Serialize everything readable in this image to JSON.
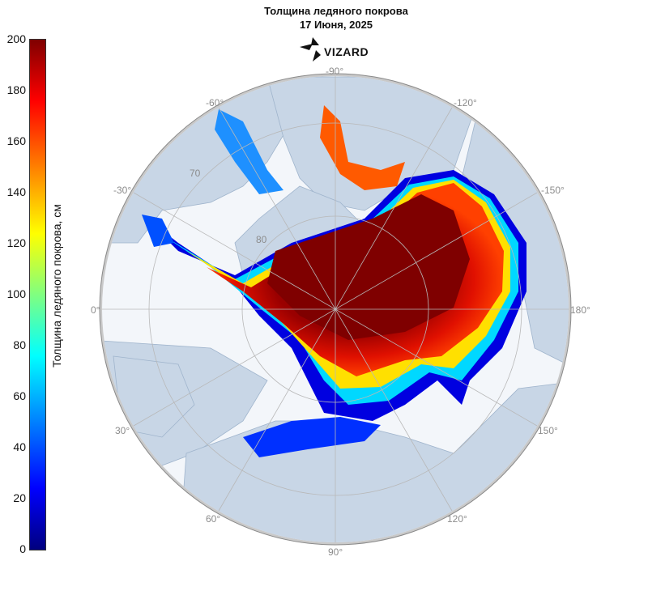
{
  "header": {
    "title_line1": "Толщина ледяного покрова",
    "title_line2": "17 Июня, 2025",
    "logo_text": "VIZARD"
  },
  "colorbar": {
    "label": "Толщина ледяного покрова, см",
    "ticks": [
      "200",
      "180",
      "160",
      "140",
      "120",
      "100",
      "80",
      "60",
      "40",
      "20",
      "0"
    ],
    "range": [
      0,
      200
    ],
    "colors": [
      "#00007f",
      "#0000ff",
      "#0080ff",
      "#00ffff",
      "#80ff80",
      "#ffff00",
      "#ff8000",
      "#ff0000",
      "#7f0000"
    ]
  },
  "map": {
    "longitude_labels": [
      "-90°",
      "-60°",
      "-120°",
      "-30°",
      "-150°",
      "0°",
      "180°",
      "30°",
      "150°",
      "60°",
      "120°",
      "90°"
    ],
    "latitude_labels": [
      "70",
      "80"
    ],
    "colors": {
      "ocean": "#f3f6fa",
      "land": "#c8d6e6",
      "outline": "#8a8a8a"
    }
  }
}
